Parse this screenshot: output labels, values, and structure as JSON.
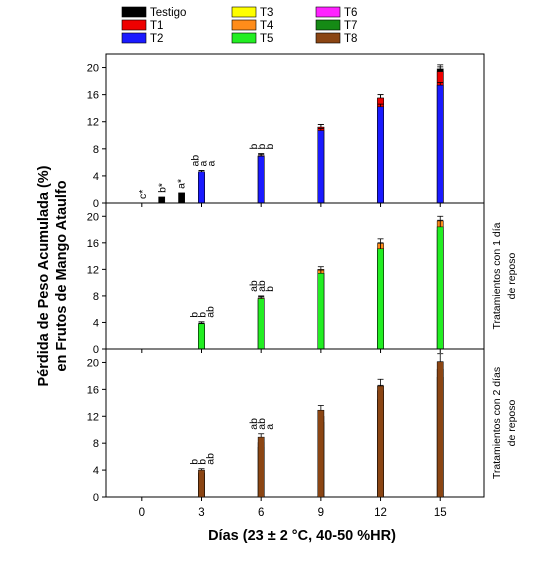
{
  "figure": {
    "ylabel_line1": "Pérdida de Peso Acumulada (%)",
    "ylabel_line2": "en Frutos de Mango Ataulfo",
    "xlabel": "Días (23 ± 2 °C, 40-50 %HR)"
  },
  "chart_data": {
    "type": "bar",
    "x_ticks": [
      "0",
      "3",
      "6",
      "9",
      "12",
      "15"
    ],
    "xlim": [
      -1.8,
      17.2
    ],
    "grid": false,
    "legend_position": "top",
    "legend": [
      {
        "key": "Testigo",
        "label": "Testigo",
        "color": "#000000"
      },
      {
        "key": "T1",
        "label": "T1",
        "color": "#ee0000"
      },
      {
        "key": "T2",
        "label": "T2",
        "color": "#1a1aff"
      },
      {
        "key": "T3",
        "label": "T3",
        "color": "#ffff00"
      },
      {
        "key": "T4",
        "label": "T4",
        "color": "#ff8c1a"
      },
      {
        "key": "T5",
        "label": "T5",
        "color": "#22ee22"
      },
      {
        "key": "T6",
        "label": "T6",
        "color": "#ff22ff"
      },
      {
        "key": "T7",
        "label": "T7",
        "color": "#158a15"
      },
      {
        "key": "T8",
        "label": "T8",
        "color": "#8b4513"
      }
    ],
    "panels": [
      {
        "right_label": [],
        "ylim": [
          0,
          22
        ],
        "y_ticks": [
          0,
          4,
          8,
          12,
          16,
          20
        ],
        "bars": [
          {
            "series": "Testigo",
            "x": 1,
            "value": 0.9,
            "err": 0
          },
          {
            "series": "Testigo",
            "x": 2,
            "value": 1.5,
            "err": 0
          },
          {
            "series": "Testigo",
            "x": 3,
            "value": 4.3,
            "err": 0.3
          },
          {
            "series": "T1",
            "x": 3,
            "value": 4.5,
            "err": 0.3
          },
          {
            "series": "T2",
            "x": 3,
            "value": 4.6,
            "err": 0.2
          },
          {
            "series": "Testigo",
            "x": 6,
            "value": 6.9,
            "err": 0.3
          },
          {
            "series": "T1",
            "x": 6,
            "value": 7.0,
            "err": 0.3
          },
          {
            "series": "T2",
            "x": 6,
            "value": 6.9,
            "err": 0.3
          },
          {
            "series": "Testigo",
            "x": 9,
            "value": 11.2,
            "err": 0.4
          },
          {
            "series": "T1",
            "x": 9,
            "value": 11.2,
            "err": 0.4
          },
          {
            "series": "T2",
            "x": 9,
            "value": 10.7,
            "err": 0.3
          },
          {
            "series": "Testigo",
            "x": 12,
            "value": 15.5,
            "err": 0.5
          },
          {
            "series": "T1",
            "x": 12,
            "value": 15.5,
            "err": 0.5
          },
          {
            "series": "T2",
            "x": 12,
            "value": 14.2,
            "err": 0.4
          },
          {
            "series": "Testigo",
            "x": 15,
            "value": 19.8,
            "err": 0.6
          },
          {
            "series": "T1",
            "x": 15,
            "value": 19.4,
            "err": 0.7
          },
          {
            "series": "T2",
            "x": 15,
            "value": 17.4,
            "err": 0.4
          }
        ],
        "annotations": [
          {
            "x": 0,
            "text": "c*"
          },
          {
            "x": 1,
            "text": "b*"
          },
          {
            "x": 1.95,
            "text": "a*"
          },
          {
            "x": 2.65,
            "text": "ab"
          },
          {
            "x": 3.05,
            "text": "a"
          },
          {
            "x": 3.45,
            "text": "a"
          },
          {
            "x": 5.6,
            "text": "b"
          },
          {
            "x": 6.0,
            "text": "b"
          },
          {
            "x": 6.4,
            "text": "b"
          }
        ]
      },
      {
        "right_label": [
          "Tratamientos con 1 día",
          "de reposo"
        ],
        "ylim": [
          0,
          22
        ],
        "y_ticks": [
          0,
          4,
          8,
          12,
          16,
          20
        ],
        "bars": [
          {
            "series": "T3",
            "x": 3,
            "value": 3.7,
            "err": 0.2
          },
          {
            "series": "T4",
            "x": 3,
            "value": 3.6,
            "err": 0.2
          },
          {
            "series": "T5",
            "x": 3,
            "value": 3.8,
            "err": 0.3
          },
          {
            "series": "T3",
            "x": 6,
            "value": 7.4,
            "err": 0.3
          },
          {
            "series": "T4",
            "x": 6,
            "value": 7.7,
            "err": 0.3
          },
          {
            "series": "T5",
            "x": 6,
            "value": 7.6,
            "err": 0.3
          },
          {
            "series": "T3",
            "x": 9,
            "value": 11.4,
            "err": 0.5
          },
          {
            "series": "T4",
            "x": 9,
            "value": 12.0,
            "err": 0.4
          },
          {
            "series": "T5",
            "x": 9,
            "value": 11.4,
            "err": 0.5
          },
          {
            "series": "T3",
            "x": 12,
            "value": 14.9,
            "err": 0.6
          },
          {
            "series": "T4",
            "x": 12,
            "value": 15.9,
            "err": 0.7
          },
          {
            "series": "T5",
            "x": 12,
            "value": 15.1,
            "err": 0.9
          },
          {
            "series": "T3",
            "x": 15,
            "value": 17.9,
            "err": 0.9
          },
          {
            "series": "T4",
            "x": 15,
            "value": 19.3,
            "err": 0.7
          },
          {
            "series": "T5",
            "x": 15,
            "value": 18.4,
            "err": 1.0
          }
        ],
        "annotations": [
          {
            "x": 2.6,
            "text": "b"
          },
          {
            "x": 3.0,
            "text": "b"
          },
          {
            "x": 3.4,
            "text": "ab"
          },
          {
            "x": 5.6,
            "text": "ab"
          },
          {
            "x": 6.0,
            "text": "ab"
          },
          {
            "x": 6.4,
            "text": "b"
          }
        ]
      },
      {
        "right_label": [
          "Tratamientos con 2 días",
          "de reposo"
        ],
        "ylim": [
          0,
          22
        ],
        "y_ticks": [
          0,
          4,
          8,
          12,
          16,
          20
        ],
        "bars": [
          {
            "series": "T6",
            "x": 3,
            "value": 3.6,
            "err": 0.2
          },
          {
            "series": "T7",
            "x": 3,
            "value": 3.5,
            "err": 0.2
          },
          {
            "series": "T8",
            "x": 3,
            "value": 4.0,
            "err": 0.2
          },
          {
            "series": "T6",
            "x": 6,
            "value": 8.1,
            "err": 0.4
          },
          {
            "series": "T7",
            "x": 6,
            "value": 7.4,
            "err": 0.4
          },
          {
            "series": "T8",
            "x": 6,
            "value": 8.9,
            "err": 0.5
          },
          {
            "series": "T6",
            "x": 9,
            "value": 12.0,
            "err": 0.5
          },
          {
            "series": "T7",
            "x": 9,
            "value": 11.1,
            "err": 0.4
          },
          {
            "series": "T8",
            "x": 9,
            "value": 12.9,
            "err": 0.7
          },
          {
            "series": "T6",
            "x": 12,
            "value": 15.8,
            "err": 0.8
          },
          {
            "series": "T7",
            "x": 12,
            "value": 14.5,
            "err": 0.7
          },
          {
            "series": "T8",
            "x": 12,
            "value": 16.5,
            "err": 1.0
          },
          {
            "series": "T6",
            "x": 15,
            "value": 19.0,
            "err": 1.1
          },
          {
            "series": "T7",
            "x": 15,
            "value": 17.8,
            "err": 0.9
          },
          {
            "series": "T8",
            "x": 15,
            "value": 20.1,
            "err": 1.2
          }
        ],
        "annotations": [
          {
            "x": 2.6,
            "text": "b"
          },
          {
            "x": 3.0,
            "text": "b"
          },
          {
            "x": 3.4,
            "text": "ab"
          },
          {
            "x": 5.6,
            "text": "ab"
          },
          {
            "x": 6.0,
            "text": "ab"
          },
          {
            "x": 6.4,
            "text": "a"
          }
        ]
      }
    ]
  }
}
